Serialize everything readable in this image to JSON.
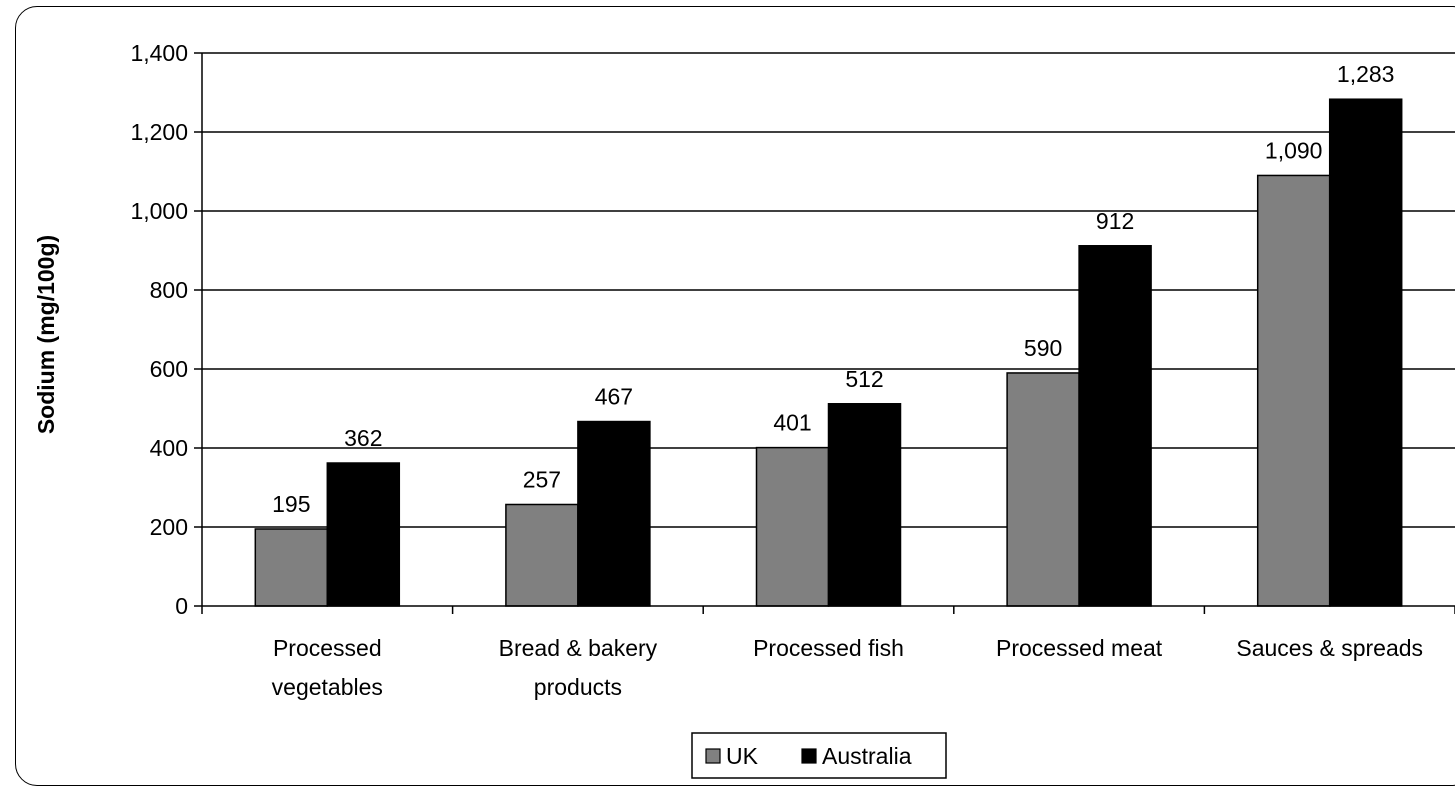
{
  "chart_data": {
    "type": "bar",
    "title": "",
    "xlabel": "",
    "ylabel": "Sodium (mg/100g)",
    "ylim": [
      0,
      1400
    ],
    "ytick_step": 200,
    "yticks": [
      "0",
      "200",
      "400",
      "600",
      "800",
      "1,000",
      "1,200",
      "1,400"
    ],
    "grid": true,
    "legend_position": "bottom-center",
    "categories": [
      [
        "Processed",
        "vegetables"
      ],
      [
        "Bread & bakery",
        "products"
      ],
      [
        "Processed fish"
      ],
      [
        "Processed meat"
      ],
      [
        "Sauces & spreads"
      ]
    ],
    "series": [
      {
        "name": "UK",
        "color": "#808080",
        "values": [
          195,
          257,
          401,
          590,
          1090
        ],
        "labels": [
          "195",
          "257",
          "401",
          "590",
          "1,090"
        ]
      },
      {
        "name": "Australia",
        "color": "#000000",
        "values": [
          362,
          467,
          512,
          912,
          1283
        ],
        "labels": [
          "362",
          "467",
          "512",
          "912",
          "1,283"
        ]
      }
    ]
  }
}
